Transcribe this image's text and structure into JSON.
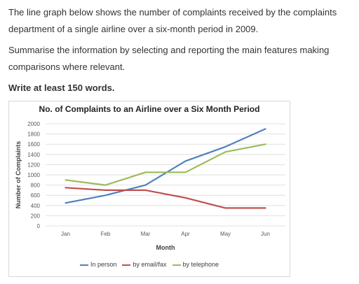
{
  "prompt": {
    "paragraph1": "The line graph below shows the number of complaints received by the complaints department of a single airline over a six-month period in 2009.",
    "paragraph2": "Summarise the information by selecting and reporting the main features making comparisons where relevant.",
    "requirement": "Write at least 150 words."
  },
  "chart_data": {
    "type": "line",
    "title": "No. of Complaints to an Airline over a Six Month Period",
    "xlabel": "Month",
    "ylabel": "Number of Complaints",
    "categories": [
      "Jan",
      "Feb",
      "Mar",
      "Apr",
      "May",
      "Jun"
    ],
    "ylim": [
      0,
      2000
    ],
    "yticks": [
      0,
      200,
      400,
      600,
      800,
      1000,
      1200,
      1400,
      1600,
      1800,
      2000
    ],
    "grid": true,
    "legend_position": "bottom",
    "series": [
      {
        "name": "In person",
        "color": "#4f81bd",
        "values": [
          450,
          600,
          800,
          1270,
          1550,
          1900
        ]
      },
      {
        "name": "by email/fax",
        "color": "#c0504d",
        "values": [
          750,
          700,
          700,
          550,
          350,
          350
        ]
      },
      {
        "name": "by telephone",
        "color": "#9bbb59",
        "values": [
          900,
          800,
          1050,
          1050,
          1450,
          1600
        ]
      }
    ]
  }
}
